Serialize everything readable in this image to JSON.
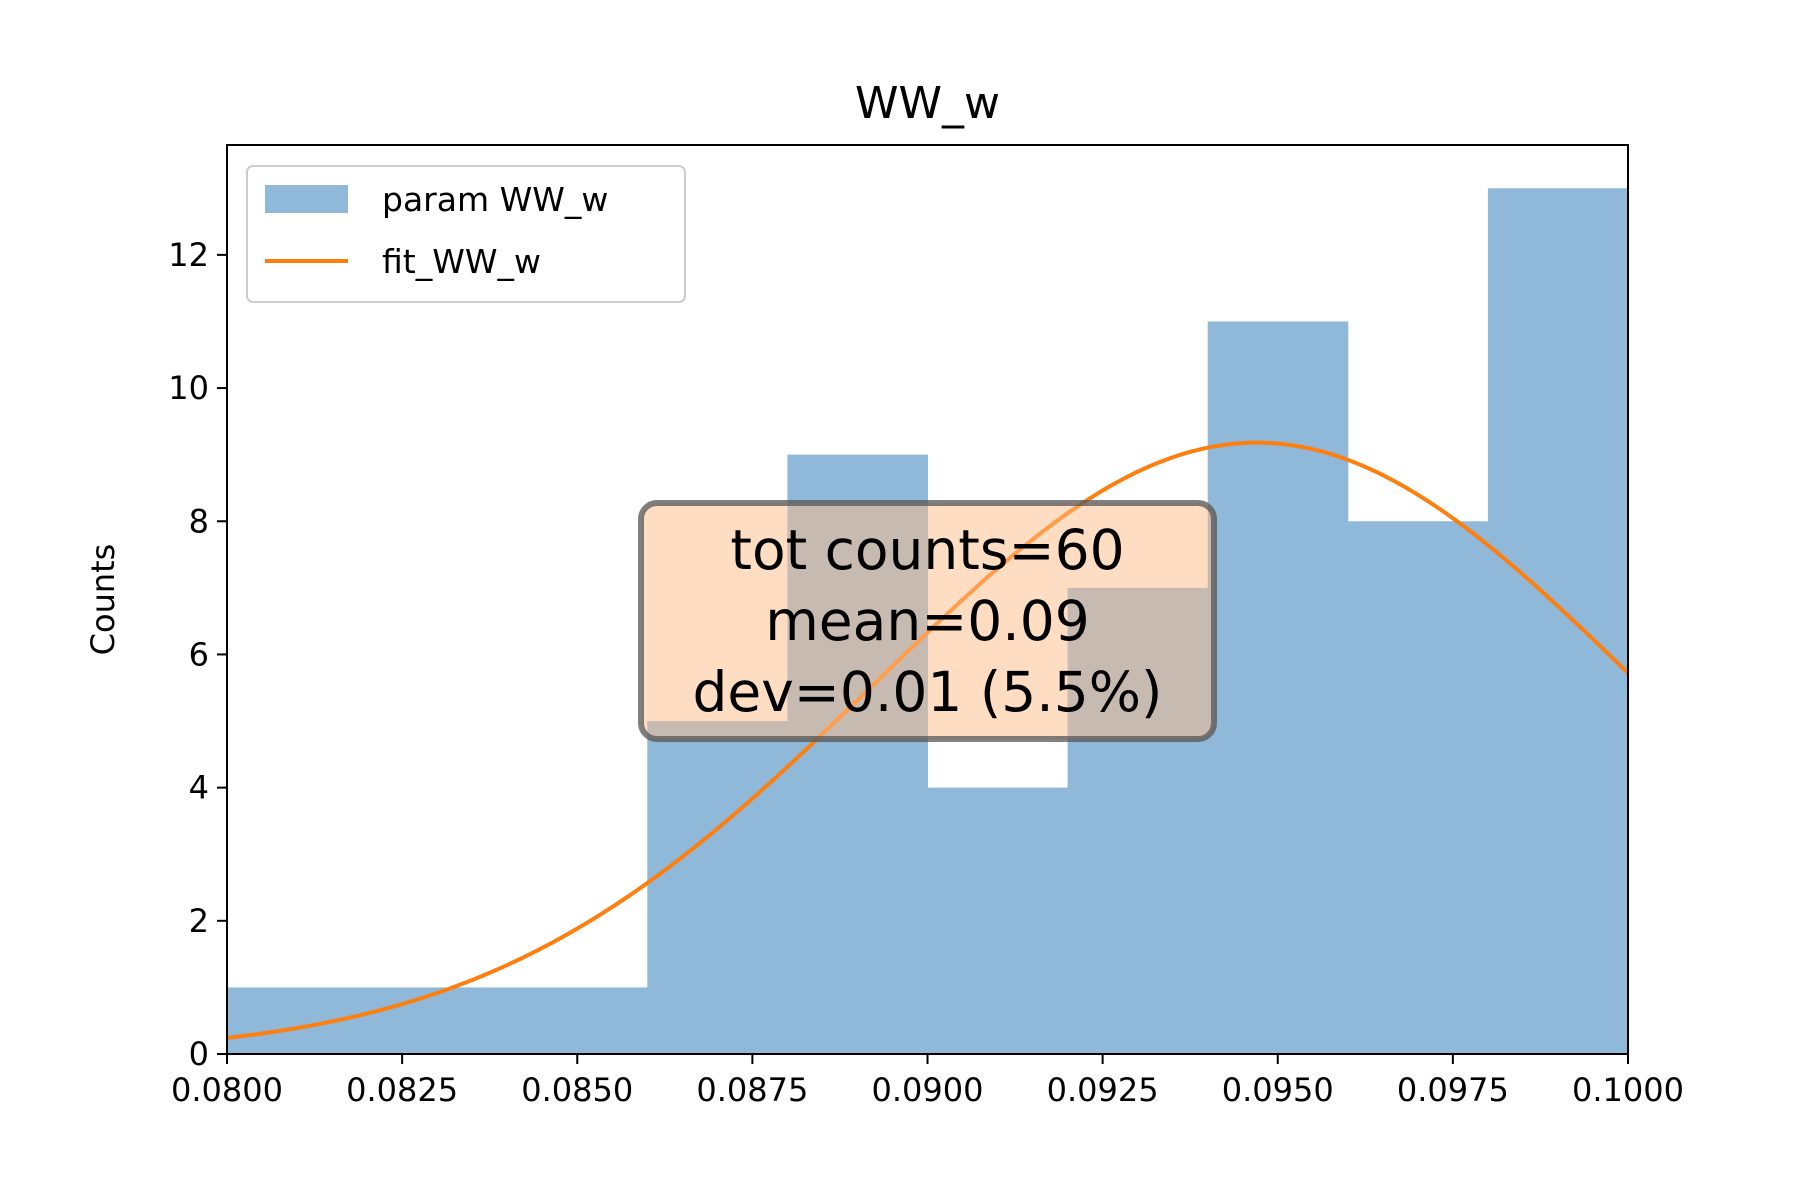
{
  "chart_data": {
    "type": "bar",
    "title": "WW_w",
    "xlabel": "",
    "ylabel": "Counts",
    "xlim": [
      0.08,
      0.1
    ],
    "ylim": [
      0,
      13.65
    ],
    "x_ticks": [
      0.08,
      0.0825,
      0.085,
      0.0875,
      0.09,
      0.0925,
      0.095,
      0.0975,
      0.1
    ],
    "x_tick_labels": [
      "0.0800",
      "0.0825",
      "0.0850",
      "0.0875",
      "0.0900",
      "0.0925",
      "0.0950",
      "0.0975",
      "0.1000"
    ],
    "y_ticks": [
      0,
      2,
      4,
      6,
      8,
      10,
      12
    ],
    "y_tick_labels": [
      "0",
      "2",
      "4",
      "6",
      "8",
      "10",
      "12"
    ],
    "grid": false,
    "legend_position": "top-left",
    "series": [
      {
        "name": "param WW_w",
        "kind": "histogram",
        "color": "#8fb8d9",
        "bins": [
          {
            "x0": 0.08,
            "x1": 0.082,
            "count": 1
          },
          {
            "x0": 0.082,
            "x1": 0.084,
            "count": 1
          },
          {
            "x0": 0.084,
            "x1": 0.086,
            "count": 1
          },
          {
            "x0": 0.086,
            "x1": 0.088,
            "count": 5
          },
          {
            "x0": 0.088,
            "x1": 0.09,
            "count": 9
          },
          {
            "x0": 0.09,
            "x1": 0.092,
            "count": 4
          },
          {
            "x0": 0.092,
            "x1": 0.094,
            "count": 7
          },
          {
            "x0": 0.094,
            "x1": 0.096,
            "count": 11
          },
          {
            "x0": 0.096,
            "x1": 0.098,
            "count": 8
          },
          {
            "x0": 0.098,
            "x1": 0.1,
            "count": 13
          }
        ]
      },
      {
        "name": "fit_WW_w",
        "kind": "line",
        "color": "#ff7f0e",
        "gaussian": {
          "amplitude": 9.18,
          "mean": 0.0947,
          "sigma": 0.00545
        },
        "x_range": [
          0.08,
          0.1
        ]
      }
    ],
    "annotation": {
      "lines": [
        "tot counts=60",
        "mean=0.09",
        "dev=0.01 (5.5%)"
      ],
      "face_color": "#ffbb88",
      "edge_color": "#555555"
    }
  }
}
